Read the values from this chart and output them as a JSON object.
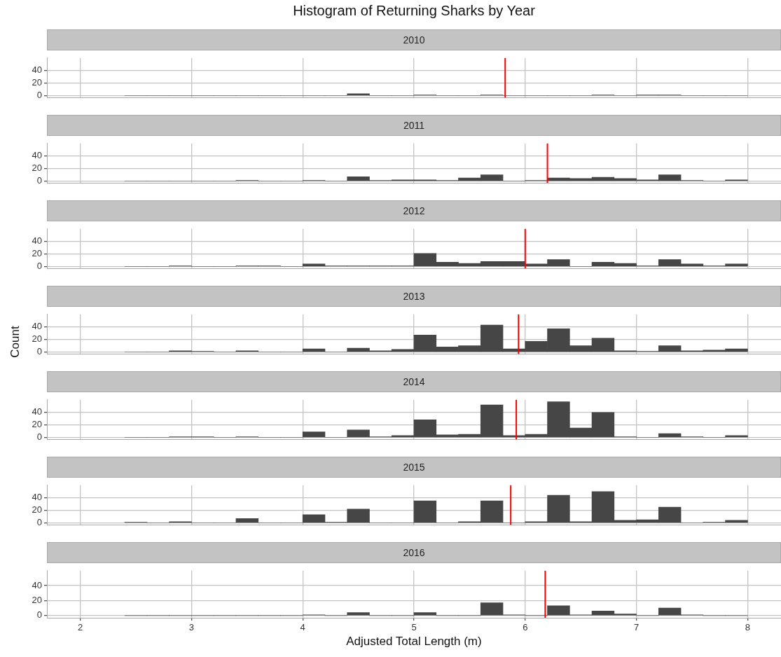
{
  "chart_data": [
    {
      "type": "histogram",
      "title": "Histogram of Returning Sharks by Year",
      "subtitle": "2010",
      "bins": [
        2.4,
        2.6,
        2.8,
        3.0,
        3.2,
        3.4,
        3.6,
        3.8,
        4.0,
        4.2,
        4.4,
        4.6,
        4.8,
        5.0,
        5.2,
        5.4,
        5.6,
        5.8,
        6.0,
        6.2,
        6.4,
        6.6,
        6.8,
        7.0,
        7.2,
        7.4,
        7.6,
        7.8,
        8.0
      ],
      "values": [
        0,
        0,
        0,
        0,
        0,
        0,
        0,
        0,
        0,
        0,
        3,
        0,
        0,
        1,
        0,
        0,
        1,
        0,
        0,
        0,
        0,
        1,
        0,
        1,
        1,
        0,
        0,
        0
      ],
      "color": "#464646",
      "xlim": [
        1.7,
        8.3
      ],
      "xticks": [
        2,
        3,
        4,
        5,
        6,
        7,
        8
      ],
      "ylim": [
        -3,
        60
      ],
      "yticks": [
        0,
        20,
        40
      ],
      "grid": true,
      "legend": false,
      "tick_labels": "y",
      "ref_lines": [
        {
          "axis": "x",
          "value": 5.82,
          "color": "#ff0000"
        }
      ]
    },
    {
      "type": "histogram",
      "subtitle": "2011",
      "bins": [
        2.4,
        2.6,
        2.8,
        3.0,
        3.2,
        3.4,
        3.6,
        3.8,
        4.0,
        4.2,
        4.4,
        4.6,
        4.8,
        5.0,
        5.2,
        5.4,
        5.6,
        5.8,
        6.0,
        6.2,
        6.4,
        6.6,
        6.8,
        7.0,
        7.2,
        7.4,
        7.6,
        7.8,
        8.0
      ],
      "values": [
        0,
        0,
        0,
        0,
        0,
        1,
        0,
        0,
        1,
        0,
        7,
        1,
        2,
        2,
        1,
        5,
        10,
        0,
        1,
        5,
        4,
        6,
        4,
        2,
        10,
        1,
        0,
        2
      ],
      "color": "#464646",
      "xlim": [
        1.7,
        8.3
      ],
      "xticks": [
        2,
        3,
        4,
        5,
        6,
        7,
        8
      ],
      "ylim": [
        -3,
        60
      ],
      "yticks": [
        0,
        20,
        40
      ],
      "grid": true,
      "legend": false,
      "tick_labels": "y",
      "ref_lines": [
        {
          "axis": "x",
          "value": 6.2,
          "color": "#ff0000"
        }
      ]
    },
    {
      "type": "histogram",
      "subtitle": "2012",
      "bins": [
        2.4,
        2.6,
        2.8,
        3.0,
        3.2,
        3.4,
        3.6,
        3.8,
        4.0,
        4.2,
        4.4,
        4.6,
        4.8,
        5.0,
        5.2,
        5.4,
        5.6,
        5.8,
        6.0,
        6.2,
        6.4,
        6.6,
        6.8,
        7.0,
        7.2,
        7.4,
        7.6,
        7.8,
        8.0
      ],
      "values": [
        0,
        0,
        1,
        0,
        0,
        1,
        1,
        0,
        4,
        1,
        1,
        1,
        1,
        21,
        7,
        5,
        8,
        8,
        4,
        11,
        0,
        7,
        5,
        1,
        11,
        4,
        1,
        4
      ],
      "color": "#464646",
      "xlim": [
        1.7,
        8.3
      ],
      "xticks": [
        2,
        3,
        4,
        5,
        6,
        7,
        8
      ],
      "ylim": [
        -3,
        60
      ],
      "yticks": [
        0,
        20,
        40
      ],
      "grid": true,
      "legend": false,
      "tick_labels": "y",
      "ref_lines": [
        {
          "axis": "x",
          "value": 6.0,
          "color": "#ff0000"
        }
      ]
    },
    {
      "type": "histogram",
      "subtitle": "2013",
      "ylabel": "Count",
      "bins": [
        2.4,
        2.6,
        2.8,
        3.0,
        3.2,
        3.4,
        3.6,
        3.8,
        4.0,
        4.2,
        4.4,
        4.6,
        4.8,
        5.0,
        5.2,
        5.4,
        5.6,
        5.8,
        6.0,
        6.2,
        6.4,
        6.6,
        6.8,
        7.0,
        7.2,
        7.4,
        7.6,
        7.8,
        8.0
      ],
      "values": [
        0,
        0,
        2,
        1,
        0,
        2,
        0,
        0,
        5,
        0,
        6,
        2,
        4,
        27,
        8,
        10,
        43,
        5,
        17,
        37,
        10,
        22,
        2,
        1,
        10,
        2,
        3,
        5
      ],
      "color": "#464646",
      "xlim": [
        1.7,
        8.3
      ],
      "xticks": [
        2,
        3,
        4,
        5,
        6,
        7,
        8
      ],
      "ylim": [
        -3,
        60
      ],
      "yticks": [
        0,
        20,
        40
      ],
      "grid": true,
      "legend": false,
      "tick_labels": "y",
      "ref_lines": [
        {
          "axis": "x",
          "value": 5.94,
          "color": "#ff0000"
        }
      ]
    },
    {
      "type": "histogram",
      "subtitle": "2014",
      "bins": [
        2.4,
        2.6,
        2.8,
        3.0,
        3.2,
        3.4,
        3.6,
        3.8,
        4.0,
        4.2,
        4.4,
        4.6,
        4.8,
        5.0,
        5.2,
        5.4,
        5.6,
        5.8,
        6.0,
        6.2,
        6.4,
        6.6,
        6.8,
        7.0,
        7.2,
        7.4,
        7.6,
        7.8,
        8.0
      ],
      "values": [
        0,
        0,
        1,
        1,
        0,
        1,
        0,
        0,
        9,
        0,
        12,
        1,
        3,
        28,
        4,
        5,
        52,
        3,
        5,
        57,
        15,
        40,
        1,
        0,
        6,
        1,
        0,
        3
      ],
      "color": "#464646",
      "xlim": [
        1.7,
        8.3
      ],
      "xticks": [
        2,
        3,
        4,
        5,
        6,
        7,
        8
      ],
      "ylim": [
        -3,
        60
      ],
      "yticks": [
        0,
        20,
        40
      ],
      "grid": true,
      "legend": false,
      "tick_labels": "y",
      "ref_lines": [
        {
          "axis": "x",
          "value": 5.92,
          "color": "#ff0000"
        }
      ]
    },
    {
      "type": "histogram",
      "subtitle": "2015",
      "bins": [
        2.4,
        2.6,
        2.8,
        3.0,
        3.2,
        3.4,
        3.6,
        3.8,
        4.0,
        4.2,
        4.4,
        4.6,
        4.8,
        5.0,
        5.2,
        5.4,
        5.6,
        5.8,
        6.0,
        6.2,
        6.4,
        6.6,
        6.8,
        7.0,
        7.2,
        7.4,
        7.6,
        7.8,
        8.0
      ],
      "values": [
        1,
        0,
        2,
        0,
        0,
        7,
        0,
        0,
        13,
        1,
        22,
        0,
        0,
        35,
        0,
        2,
        35,
        0,
        2,
        44,
        2,
        50,
        4,
        5,
        25,
        0,
        1,
        4
      ],
      "color": "#464646",
      "xlim": [
        1.7,
        8.3
      ],
      "xticks": [
        2,
        3,
        4,
        5,
        6,
        7,
        8
      ],
      "ylim": [
        -3,
        60
      ],
      "yticks": [
        0,
        20,
        40
      ],
      "grid": true,
      "legend": false,
      "tick_labels": "y",
      "ref_lines": [
        {
          "axis": "x",
          "value": 5.87,
          "color": "#ff0000"
        }
      ]
    },
    {
      "type": "histogram",
      "subtitle": "2016",
      "xlabel": "Adjusted Total Length (m)",
      "bins": [
        2.4,
        2.6,
        2.8,
        3.0,
        3.2,
        3.4,
        3.6,
        3.8,
        4.0,
        4.2,
        4.4,
        4.6,
        4.8,
        5.0,
        5.2,
        5.4,
        5.6,
        5.8,
        6.0,
        6.2,
        6.4,
        6.6,
        6.8,
        7.0,
        7.2,
        7.4,
        7.6,
        7.8,
        8.0
      ],
      "values": [
        0,
        0,
        0,
        0,
        0,
        0,
        0,
        0,
        1,
        0,
        4,
        0,
        0,
        4,
        0,
        0,
        17,
        1,
        0,
        13,
        1,
        6,
        2,
        0,
        10,
        1,
        0,
        0
      ],
      "color": "#464646",
      "xlim": [
        1.7,
        8.3
      ],
      "xticks": [
        2,
        3,
        4,
        5,
        6,
        7,
        8
      ],
      "ylim": [
        -3,
        60
      ],
      "yticks": [
        0,
        20,
        40
      ],
      "grid": true,
      "legend": false,
      "ref_lines": [
        {
          "axis": "x",
          "value": 6.18,
          "color": "#ff0000"
        }
      ]
    }
  ]
}
